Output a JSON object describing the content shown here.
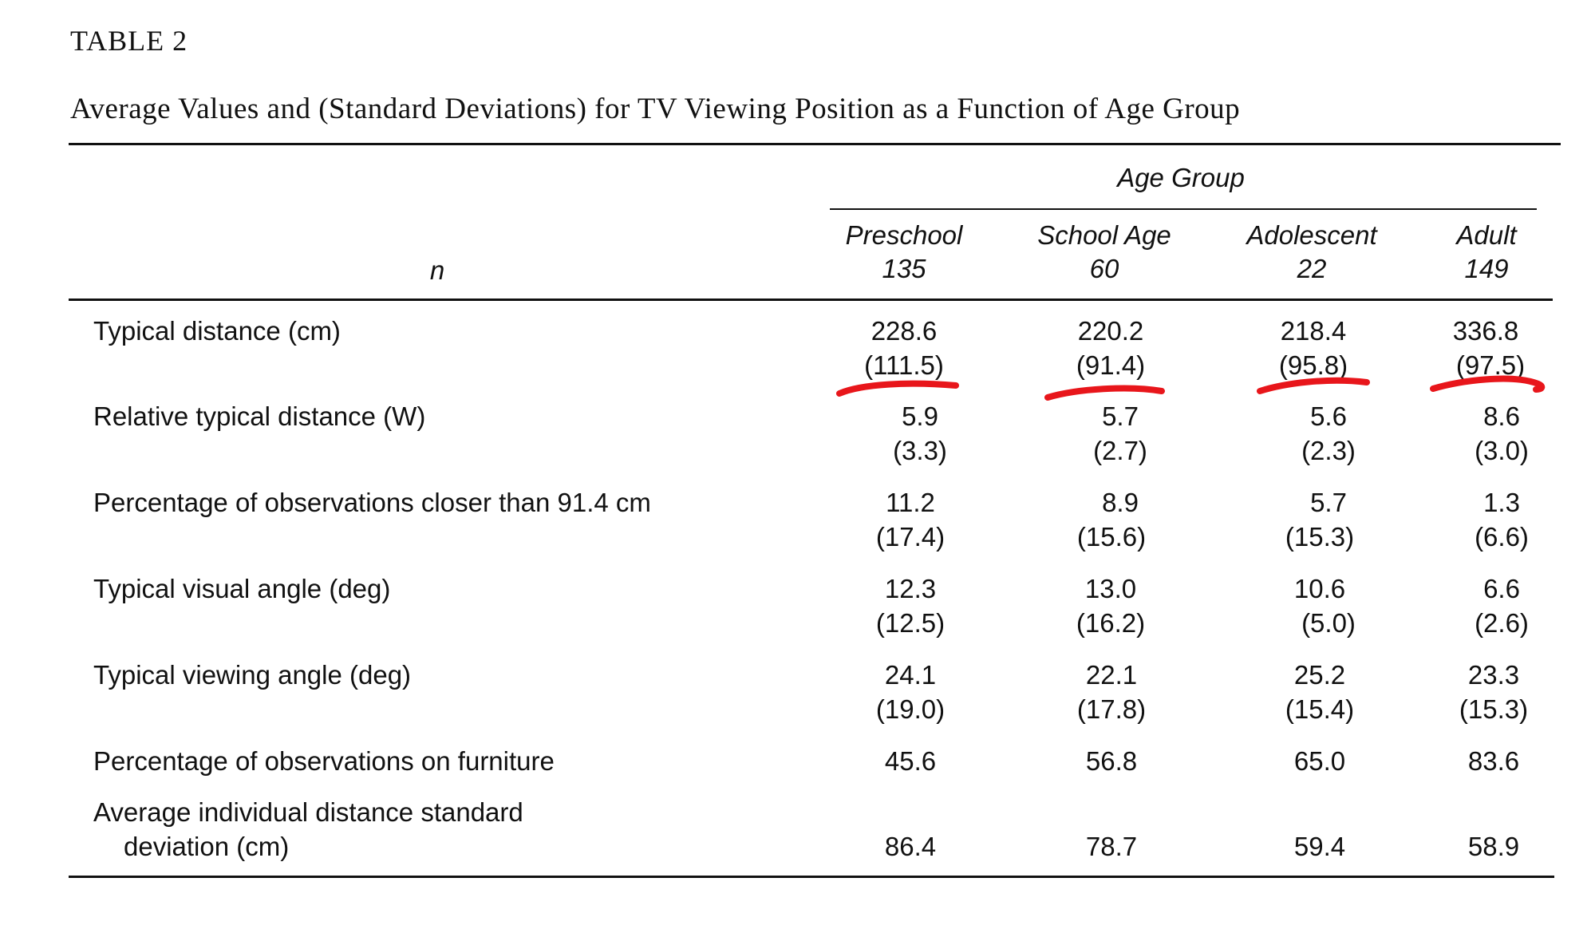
{
  "table": {
    "label": "TABLE 2",
    "caption": "Average Values and (Standard Deviations) for TV Viewing Position as a Function of Age Group",
    "group_header": "Age Group",
    "n_label": "n",
    "columns": [
      {
        "name": "Preschool",
        "n": "135"
      },
      {
        "name": "School Age",
        "n": "60"
      },
      {
        "name": "Adolescent",
        "n": "22"
      },
      {
        "name": "Adult",
        "n": "149"
      }
    ],
    "rows": [
      {
        "label": "Typical distance (cm)",
        "values": [
          "228.6",
          "220.2",
          "218.4",
          "336.8"
        ],
        "sds": [
          "(111.5)",
          "(91.4)",
          "(95.8)",
          "(97.5)"
        ]
      },
      {
        "label": "Relative typical distance (W)",
        "values": [
          "5.9",
          "5.7",
          "5.6",
          "8.6"
        ],
        "sds": [
          "(3.3)",
          "(2.7)",
          "(2.3)",
          "(3.0)"
        ]
      },
      {
        "label": "Percentage of observations closer than 91.4 cm",
        "values": [
          "11.2",
          "8.9",
          "5.7",
          "1.3"
        ],
        "sds": [
          "(17.4)",
          "(15.6)",
          "(15.3)",
          "(6.6)"
        ]
      },
      {
        "label": "Typical visual angle (deg)",
        "values": [
          "12.3",
          "13.0",
          "10.6",
          "6.6"
        ],
        "sds": [
          "(12.5)",
          "(16.2)",
          "(5.0)",
          "(2.6)"
        ]
      },
      {
        "label": "Typical viewing angle (deg)",
        "values": [
          "24.1",
          "22.1",
          "25.2",
          "23.3"
        ],
        "sds": [
          "(19.0)",
          "(17.8)",
          "(15.4)",
          "(15.3)"
        ]
      },
      {
        "label": "Percentage of observations on furniture",
        "values": [
          "45.6",
          "56.8",
          "65.0",
          "83.6"
        ]
      },
      {
        "label_line1": "Average individual distance standard",
        "label_line2": "deviation (cm)",
        "values": [
          "86.4",
          "78.7",
          "59.4",
          "58.9"
        ]
      }
    ]
  },
  "annotations": {
    "underline_color": "#e8161b"
  }
}
